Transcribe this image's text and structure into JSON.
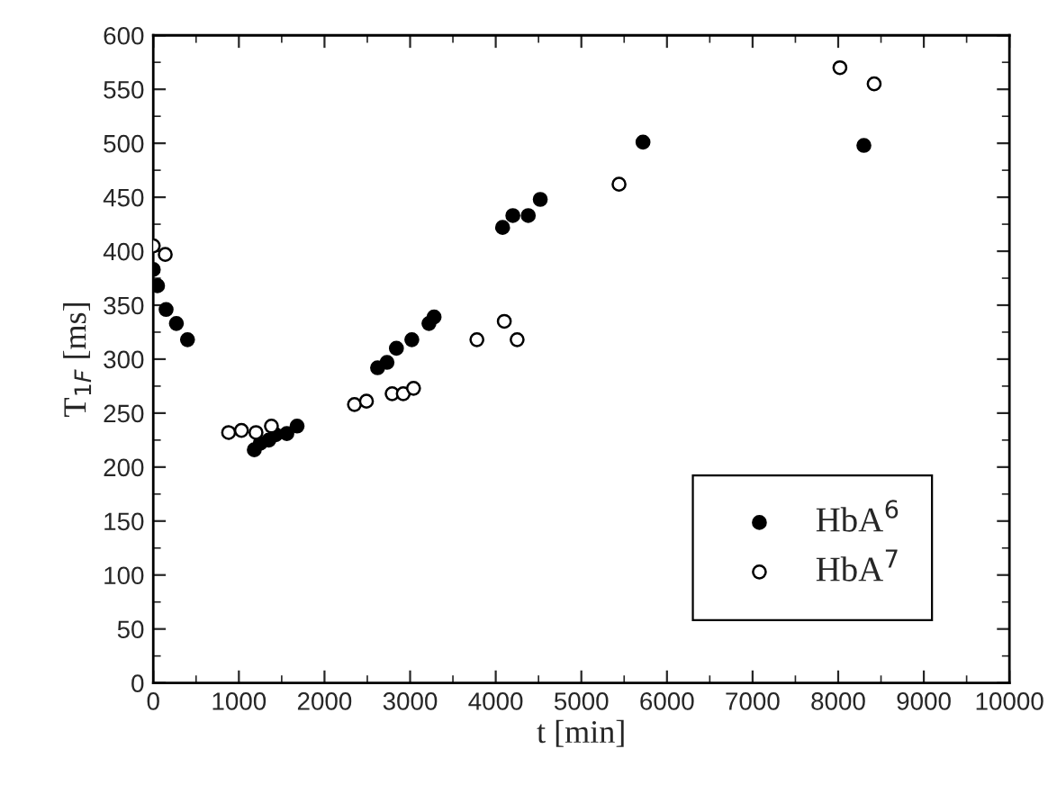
{
  "chart_data": {
    "type": "scatter",
    "xlabel": "t [min]",
    "ylabel": "T$_{1F}$ [ms]",
    "xlim": [
      0,
      10000
    ],
    "ylim": [
      0,
      600
    ],
    "xticks": [
      0,
      1000,
      2000,
      3000,
      4000,
      5000,
      6000,
      7000,
      8000,
      9000,
      10000
    ],
    "yticks": [
      0,
      50,
      100,
      150,
      200,
      250,
      300,
      350,
      400,
      450,
      500,
      550,
      600
    ],
    "grid": false,
    "legend": "bottom right",
    "marker": "circle",
    "series": [
      {
        "name": "HbA$^{6}$",
        "color": "#000000",
        "x": [
          0,
          50,
          150,
          270,
          400,
          1180,
          1250,
          1350,
          1430,
          1560,
          1680,
          2620,
          2730,
          2840,
          3020,
          3220,
          3280,
          4080,
          4200,
          4380,
          4520,
          5720,
          8300
        ],
        "values": [
          383,
          368,
          346,
          333,
          318,
          216,
          222,
          225,
          230,
          231,
          238,
          292,
          297,
          310,
          318,
          333,
          339,
          422,
          433,
          433,
          448,
          501,
          498
        ]
      },
      {
        "name": "HbA$^{7}$",
        "color": "#ffffff",
        "x": [
          0,
          140,
          880,
          1030,
          1200,
          1380,
          2350,
          2490,
          2790,
          2920,
          3040,
          3780,
          4100,
          4250,
          5440,
          8020,
          8420
        ],
        "values": [
          405,
          397,
          232,
          234,
          232,
          238,
          258,
          261,
          268,
          268,
          273,
          318,
          335,
          318,
          462,
          570,
          555
        ]
      }
    ]
  }
}
